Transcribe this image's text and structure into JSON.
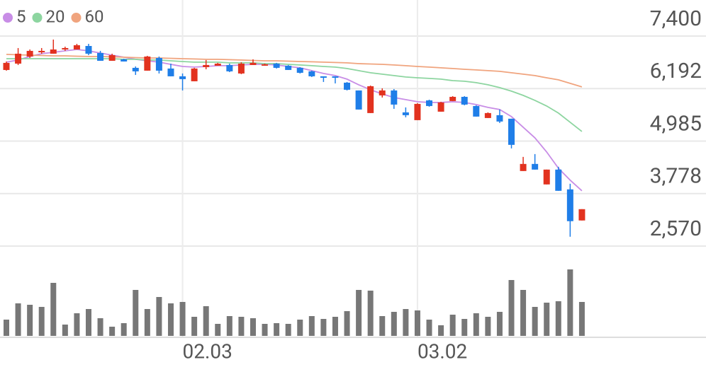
{
  "chart_data": {
    "type": "candlestick",
    "categories": [
      null,
      null,
      null,
      null,
      null,
      null,
      null,
      null,
      null,
      null,
      null,
      null,
      null,
      null,
      null,
      "02.03",
      null,
      null,
      null,
      null,
      null,
      null,
      null,
      null,
      null,
      null,
      null,
      null,
      null,
      null,
      null,
      null,
      null,
      null,
      null,
      "03.02",
      null,
      null,
      null,
      null,
      null,
      null,
      null,
      null,
      null,
      null,
      null,
      null,
      null,
      null
    ],
    "open": [
      6620,
      6766,
      6929,
      7026,
      6994,
      7091,
      7091,
      7172,
      7010,
      6831,
      6864,
      6669,
      6604,
      6896,
      6653,
      6474,
      6360,
      6685,
      6718,
      6734,
      6539,
      6734,
      6718,
      6766,
      6718,
      6669,
      6588,
      6474,
      6474,
      6328,
      6149,
      5629,
      6035,
      6149,
      5645,
      5466,
      5921,
      5661,
      5905,
      6002,
      5791,
      5515,
      5580,
      5499,
      4296,
      4459,
      3988,
      4329,
      3874,
      3159
    ],
    "high": [
      6815,
      7124,
      7091,
      7124,
      7319,
      7156,
      7221,
      7221,
      7059,
      6994,
      6880,
      6701,
      6945,
      6929,
      6766,
      6539,
      6669,
      6848,
      6783,
      6766,
      6799,
      6864,
      6766,
      6783,
      6734,
      6685,
      6604,
      6474,
      6474,
      6344,
      6149,
      6262,
      6198,
      6181,
      5759,
      5856,
      5937,
      5889,
      6018,
      6018,
      5808,
      5645,
      5710,
      5499,
      4621,
      4686,
      4329,
      4394,
      4004,
      3419
    ],
    "low": [
      6604,
      6734,
      6896,
      6994,
      6994,
      7059,
      7091,
      6961,
      6831,
      6831,
      6815,
      6506,
      6604,
      6539,
      6474,
      6149,
      6360,
      6636,
      6718,
      6571,
      6523,
      6734,
      6718,
      6653,
      6620,
      6539,
      6458,
      6344,
      6311,
      6149,
      5710,
      5629,
      5986,
      5726,
      5531,
      5466,
      5775,
      5661,
      5905,
      5808,
      5548,
      5515,
      5401,
      4816,
      4296,
      4329,
      3988,
      3841,
      2785,
      3159
    ],
    "close": [
      6783,
      6994,
      7059,
      7059,
      7091,
      7124,
      7189,
      6994,
      6831,
      6961,
      6815,
      6588,
      6929,
      6604,
      6474,
      6409,
      6653,
      6734,
      6766,
      6588,
      6766,
      6783,
      6750,
      6669,
      6620,
      6555,
      6474,
      6441,
      6441,
      6165,
      5710,
      6246,
      6149,
      5824,
      5580,
      5840,
      5791,
      5873,
      6002,
      5824,
      5548,
      5629,
      5434,
      4898,
      4459,
      4329,
      4329,
      3841,
      3143,
      3419
    ],
    "up_color": "#e2321f",
    "down_color": "#1f7ee8",
    "series": [
      {
        "name": "5",
        "color": "#c88de6",
        "values": [
          6799,
          6848,
          6929,
          6994,
          7026,
          7059,
          7091,
          7059,
          7010,
          6961,
          6913,
          6864,
          6831,
          6799,
          6750,
          6701,
          6685,
          6701,
          6718,
          6718,
          6734,
          6750,
          6750,
          6734,
          6701,
          6669,
          6604,
          6539,
          6490,
          6409,
          6279,
          6165,
          6068,
          5986,
          5938,
          5889,
          5873,
          5873,
          5889,
          5873,
          5824,
          5759,
          5710,
          5548,
          5304,
          5060,
          4735,
          4361,
          4085,
          3841
        ]
      },
      {
        "name": "20",
        "color": "#8dd5a0",
        "values": [
          6880,
          6880,
          6880,
          6880,
          6880,
          6880,
          6880,
          6880,
          6880,
          6880,
          6864,
          6864,
          6848,
          6848,
          6831,
          6815,
          6799,
          6799,
          6799,
          6783,
          6783,
          6783,
          6766,
          6766,
          6750,
          6734,
          6718,
          6701,
          6685,
          6653,
          6604,
          6555,
          6523,
          6490,
          6458,
          6441,
          6425,
          6409,
          6376,
          6360,
          6328,
          6279,
          6214,
          6133,
          6035,
          5921,
          5791,
          5629,
          5418,
          5206
        ]
      },
      {
        "name": "60",
        "color": "#f0a47e",
        "values": [
          6978,
          6969,
          6961,
          6953,
          6945,
          6945,
          6937,
          6929,
          6929,
          6921,
          6913,
          6904,
          6896,
          6896,
          6888,
          6880,
          6872,
          6864,
          6864,
          6856,
          6848,
          6839,
          6831,
          6831,
          6823,
          6815,
          6807,
          6799,
          6791,
          6783,
          6766,
          6758,
          6750,
          6734,
          6718,
          6701,
          6685,
          6669,
          6653,
          6636,
          6620,
          6604,
          6588,
          6555,
          6523,
          6490,
          6441,
          6393,
          6311,
          6230
        ]
      }
    ],
    "volume": {
      "color": "#777777",
      "ylim": [
        0,
        100
      ],
      "values": [
        23,
        46,
        44,
        41,
        75,
        16,
        32,
        38,
        25,
        13,
        18,
        65,
        38,
        55,
        46,
        48,
        27,
        42,
        17,
        28,
        27,
        25,
        17,
        18,
        17,
        23,
        28,
        24,
        27,
        35,
        65,
        64,
        28,
        34,
        38,
        36,
        23,
        15,
        30,
        24,
        32,
        27,
        34,
        79,
        65,
        41,
        47,
        49,
        94,
        48
      ]
    },
    "ylim": [
      2570,
      8229
    ],
    "yticks": [
      {
        "value": 7400,
        "label": "7,400"
      },
      {
        "value": 6192,
        "label": "6,192"
      },
      {
        "value": 4985,
        "label": "4,985"
      },
      {
        "value": 3778,
        "label": "3,778"
      },
      {
        "value": 2570,
        "label": "2,570"
      }
    ],
    "grid": true
  }
}
